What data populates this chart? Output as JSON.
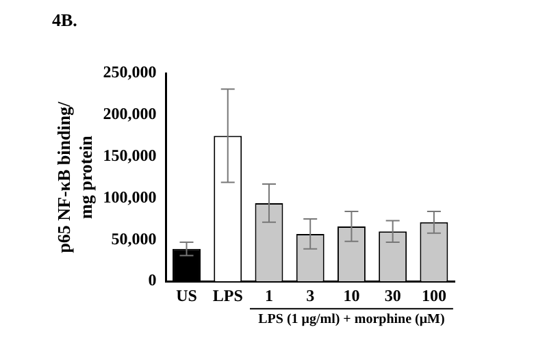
{
  "chart_data": {
    "type": "bar",
    "title": "4B.",
    "ylabel": "p65 NF-κB binding/\nmg protein",
    "xlabel": "LPS (1 μg/ml) + morphine (μM)",
    "categories": [
      "US",
      "LPS",
      "1",
      "3",
      "10",
      "30",
      "100"
    ],
    "values": [
      39000,
      175000,
      94000,
      57000,
      66000,
      60000,
      71000
    ],
    "errors": [
      8000,
      56000,
      23000,
      18000,
      18000,
      13000,
      13000
    ],
    "colors": [
      "#000000",
      "#ffffff",
      "#c8c8c8",
      "#c8c8c8",
      "#c8c8c8",
      "#c8c8c8",
      "#c8c8c8"
    ],
    "ylim": [
      0,
      250000
    ],
    "yticks": [
      {
        "value": 0,
        "label": "0"
      },
      {
        "value": 50000,
        "label": "50,000"
      },
      {
        "value": 100000,
        "label": "100,000"
      },
      {
        "value": 150000,
        "label": "150,000"
      },
      {
        "value": 200000,
        "label": "200,000"
      },
      {
        "value": 250000,
        "label": "250,000"
      }
    ],
    "grid": false,
    "legend": false
  }
}
